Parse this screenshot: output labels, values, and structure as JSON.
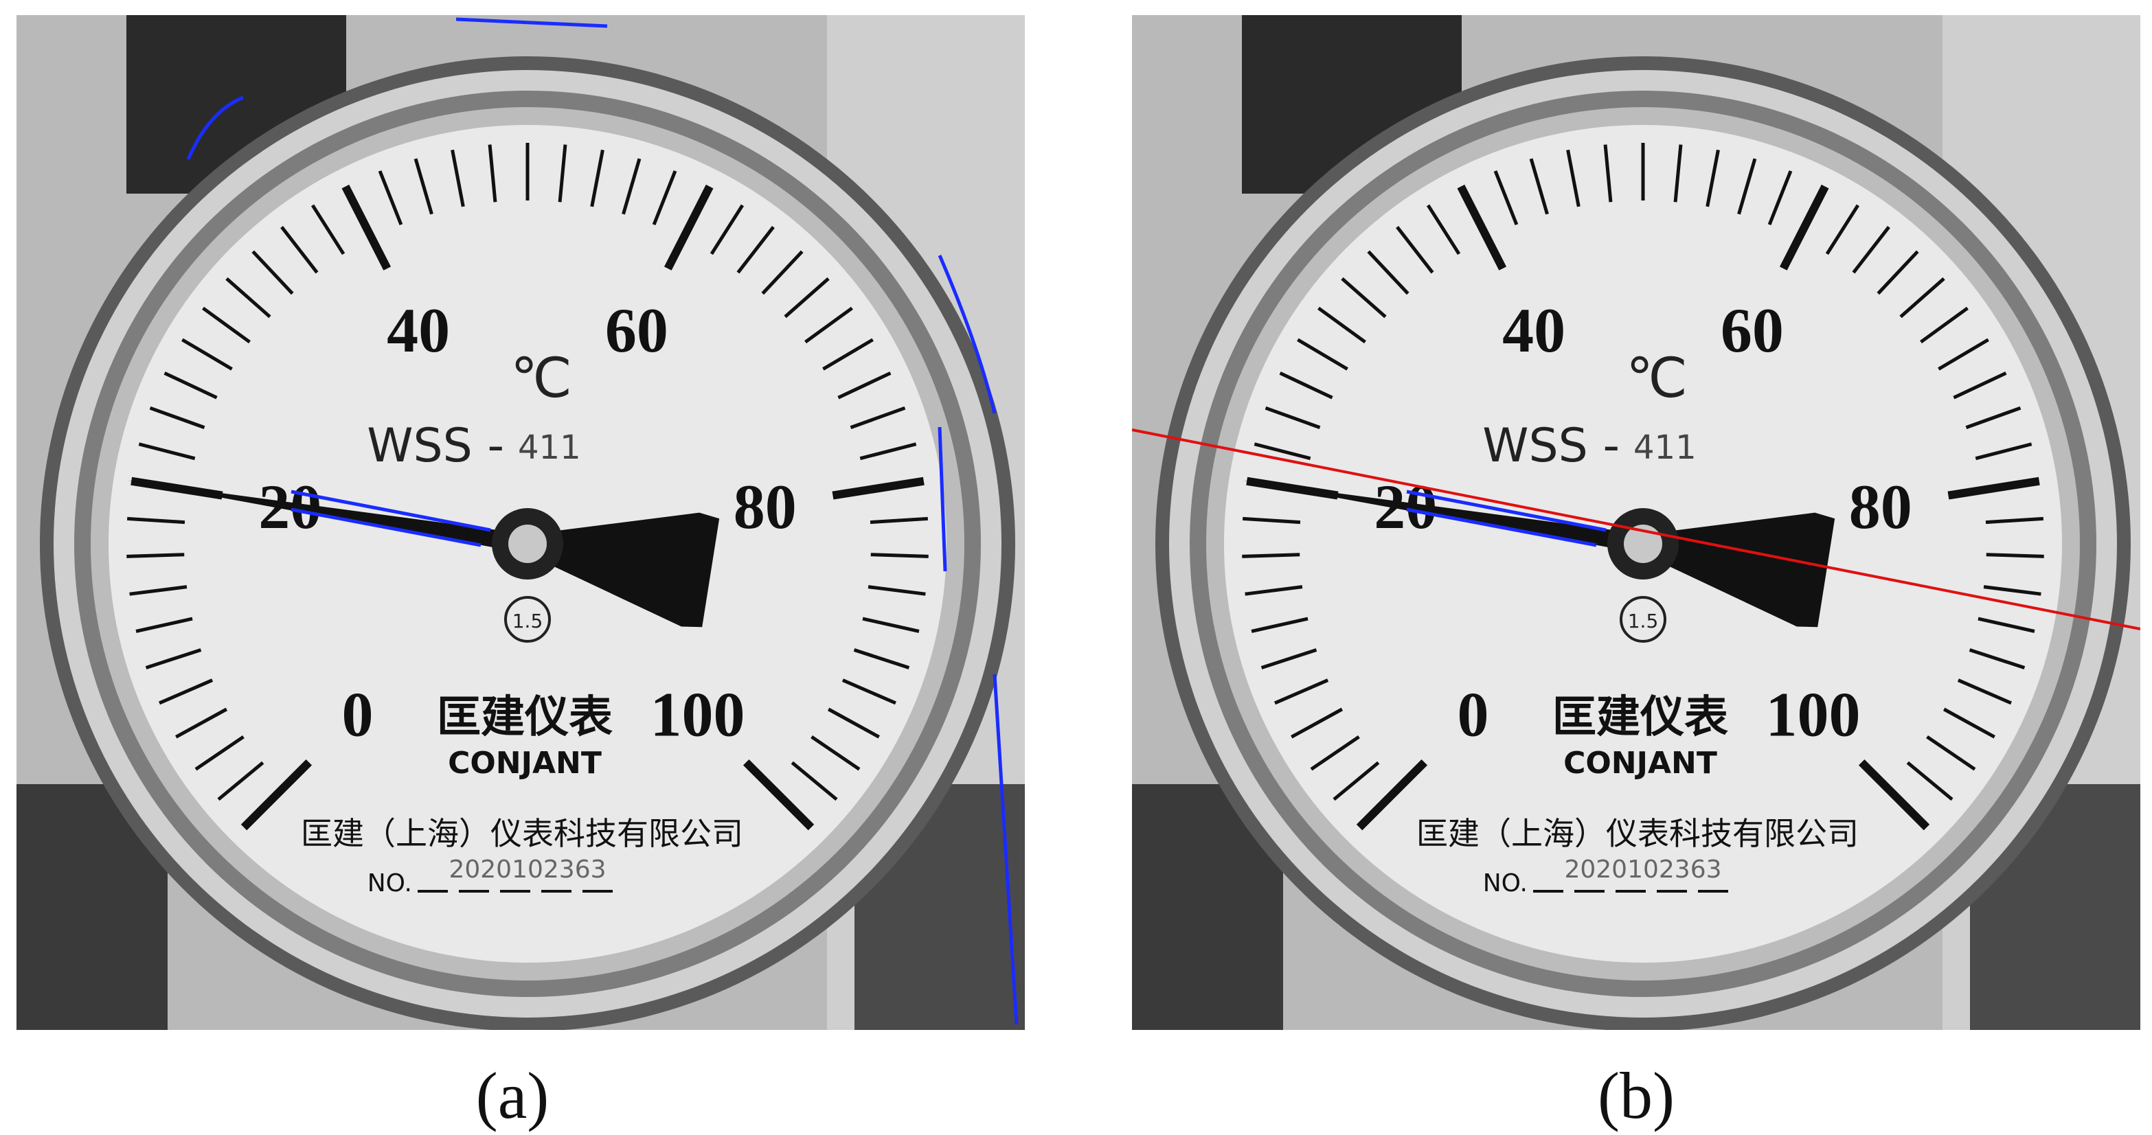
{
  "panels": [
    {
      "caption": "(a)",
      "dial": {
        "unit": "℃",
        "model_prefix": "WSS -",
        "model_number": "411",
        "scale_labels": [
          "0",
          "20",
          "40",
          "60",
          "80",
          "100"
        ],
        "accuracy_class": "1.5",
        "brand_cn": "匡建仪表",
        "brand_en": "CONJANT",
        "company": "匡建（上海）仪表科技有限公司",
        "serial_prefix": "NO.",
        "serial": "2020102363"
      },
      "overlay": {
        "edge_color": "#1a2cff",
        "fit_line": false
      }
    },
    {
      "caption": "(b)",
      "dial": {
        "unit": "℃",
        "model_prefix": "WSS -",
        "model_number": "411",
        "scale_labels": [
          "0",
          "20",
          "40",
          "60",
          "80",
          "100"
        ],
        "accuracy_class": "1.5",
        "brand_cn": "匡建仪表",
        "brand_en": "CONJANT",
        "company": "匡建（上海）仪表科技有限公司",
        "serial_prefix": "NO.",
        "serial": "2020102363"
      },
      "overlay": {
        "edge_color": "#1a2cff",
        "fit_line": true,
        "fit_line_color": "#e01010"
      }
    }
  ],
  "colors": {
    "dial_face": "#e9e9e9",
    "bezel": "#8c8c8c",
    "needle": "#111111",
    "background": "#b8b8b8"
  },
  "scale": {
    "min": 0,
    "max": 100,
    "needle_reading": 20
  }
}
